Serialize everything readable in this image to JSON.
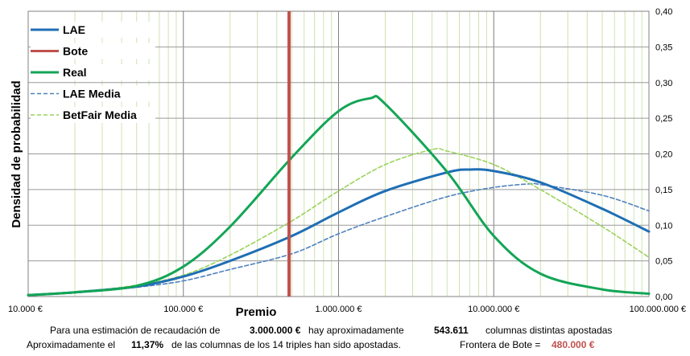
{
  "chart_data": {
    "type": "line",
    "title": "",
    "xlabel": "Premio",
    "ylabel": "Densidad de probabilidad",
    "x_scale": "log",
    "xlim": [
      10000,
      100000000
    ],
    "ylim": [
      0,
      0.4
    ],
    "x_ticks": [
      "10.000 €",
      "100.000 €",
      "1.000.000 €",
      "10.000.000 €",
      "100.000.000 €"
    ],
    "x_tick_values": [
      10000,
      100000,
      1000000,
      10000000,
      100000000
    ],
    "y_ticks": [
      "0,00",
      "0,05",
      "0,10",
      "0,15",
      "0,20",
      "0,25",
      "0,30",
      "0,35",
      "0,40"
    ],
    "y_tick_values": [
      0,
      0.05,
      0.1,
      0.15,
      0.2,
      0.25,
      0.3,
      0.35,
      0.4
    ],
    "y_axis_side": "right",
    "grid": true,
    "legend_position": "top-left",
    "series": [
      {
        "name": "LAE",
        "color": "#1f6eb4",
        "style": "solid",
        "x": [
          10000,
          20000,
          50000,
          100000,
          200000,
          500000,
          1000000,
          2000000,
          5000000,
          7000000,
          10000000,
          20000000,
          50000000,
          100000000
        ],
        "y": [
          0.002,
          0.006,
          0.014,
          0.028,
          0.05,
          0.085,
          0.118,
          0.148,
          0.174,
          0.178,
          0.176,
          0.16,
          0.123,
          0.091
        ]
      },
      {
        "name": "Bote",
        "color": "#c0504d",
        "style": "solid",
        "x": [
          480000,
          480000
        ],
        "y": [
          0,
          0.4
        ]
      },
      {
        "name": "Real",
        "color": "#13a556",
        "style": "solid",
        "x": [
          10000,
          20000,
          50000,
          100000,
          200000,
          500000,
          1000000,
          1600000,
          2000000,
          5000000,
          10000000,
          20000000,
          50000000,
          100000000
        ],
        "y": [
          0.002,
          0.006,
          0.015,
          0.042,
          0.098,
          0.195,
          0.26,
          0.278,
          0.27,
          0.175,
          0.085,
          0.032,
          0.01,
          0.004
        ]
      },
      {
        "name": "LAE Media",
        "color": "#4f81bd",
        "style": "dashed",
        "x": [
          10000,
          20000,
          50000,
          100000,
          200000,
          500000,
          1000000,
          2000000,
          5000000,
          10000000,
          17000000,
          20000000,
          50000000,
          100000000
        ],
        "y": [
          0.002,
          0.005,
          0.013,
          0.022,
          0.038,
          0.06,
          0.088,
          0.112,
          0.14,
          0.153,
          0.158,
          0.157,
          0.142,
          0.12
        ]
      },
      {
        "name": "BetFair Media",
        "color": "#9bd35a",
        "style": "dashed",
        "x": [
          10000,
          20000,
          50000,
          100000,
          200000,
          500000,
          1000000,
          2000000,
          4000000,
          5000000,
          10000000,
          20000000,
          50000000,
          100000000
        ],
        "y": [
          0.002,
          0.006,
          0.016,
          0.03,
          0.058,
          0.106,
          0.148,
          0.185,
          0.206,
          0.204,
          0.185,
          0.15,
          0.098,
          0.055
        ]
      }
    ]
  },
  "footer": {
    "line1": {
      "prefix": "Para  una estimación de recaudación de",
      "amount": "3.000.000 €",
      "middle": "hay aproximadamente",
      "columns": "543.611",
      "suffix": "columnas distintas apostadas"
    },
    "line2": {
      "prefix": "Aproximadamente el",
      "percent": "11,37%",
      "middle": "de las columnas de los 14 triples han sido apostadas.",
      "frontier_label": "Frontera de Bote =",
      "frontier_value": "480.000 €"
    }
  }
}
